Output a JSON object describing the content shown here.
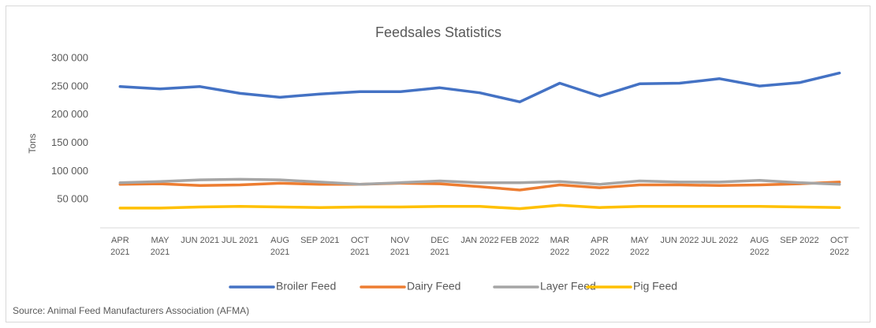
{
  "chart_data": {
    "type": "line",
    "title": "Feedsales Statistics",
    "y_label": "Tons",
    "source": "Source: Animal Feed Manufacturers Association (AFMA)",
    "categories": [
      "APR 2021",
      "MAY 2021",
      "JUN 2021",
      "JUL 2021",
      "AUG 2021",
      "SEP 2021",
      "OCT 2021",
      "NOV 2021",
      "DEC 2021",
      "JAN 2022",
      "FEB 2022",
      "MAR 2022",
      "APR 2022",
      "MAY 2022",
      "JUN 2022",
      "JUL 2022",
      "AUG 2022",
      "SEP 2022",
      "OCT 2022"
    ],
    "series": [
      {
        "name": "Broiler Feed",
        "color": "#4472c4",
        "values": [
          250000,
          246000,
          250000,
          238000,
          231000,
          237000,
          241000,
          241000,
          248000,
          239000,
          223000,
          256000,
          233000,
          255000,
          256000,
          264000,
          251000,
          257000,
          274000
        ]
      },
      {
        "name": "Dairy Feed",
        "color": "#ed7d31",
        "values": [
          77000,
          78000,
          75000,
          76000,
          79000,
          77000,
          77000,
          79000,
          78000,
          73000,
          67000,
          76000,
          71000,
          76000,
          76000,
          75000,
          76000,
          78000,
          81000
        ]
      },
      {
        "name": "Layer Feed",
        "color": "#a5a5a5",
        "values": [
          80000,
          82000,
          85000,
          86000,
          85000,
          81000,
          77000,
          80000,
          83000,
          80000,
          80000,
          82000,
          77000,
          83000,
          81000,
          81000,
          84000,
          80000,
          77000
        ]
      },
      {
        "name": "Pig Feed",
        "color": "#ffc000",
        "values": [
          35000,
          35000,
          37000,
          38000,
          37000,
          36000,
          37000,
          37000,
          38000,
          38000,
          34000,
          40000,
          36000,
          38000,
          38000,
          38000,
          38000,
          37000,
          36000
        ]
      }
    ],
    "ylim": [
      0,
      300000
    ],
    "yticks": [
      {
        "value": 50000,
        "label": "50 000"
      },
      {
        "value": 100000,
        "label": "100 000"
      },
      {
        "value": 150000,
        "label": "150 000"
      },
      {
        "value": 200000,
        "label": "200 000"
      },
      {
        "value": 250000,
        "label": "250 000"
      },
      {
        "value": 300000,
        "label": "300 000"
      }
    ],
    "grid": false,
    "legend": "bottom"
  }
}
